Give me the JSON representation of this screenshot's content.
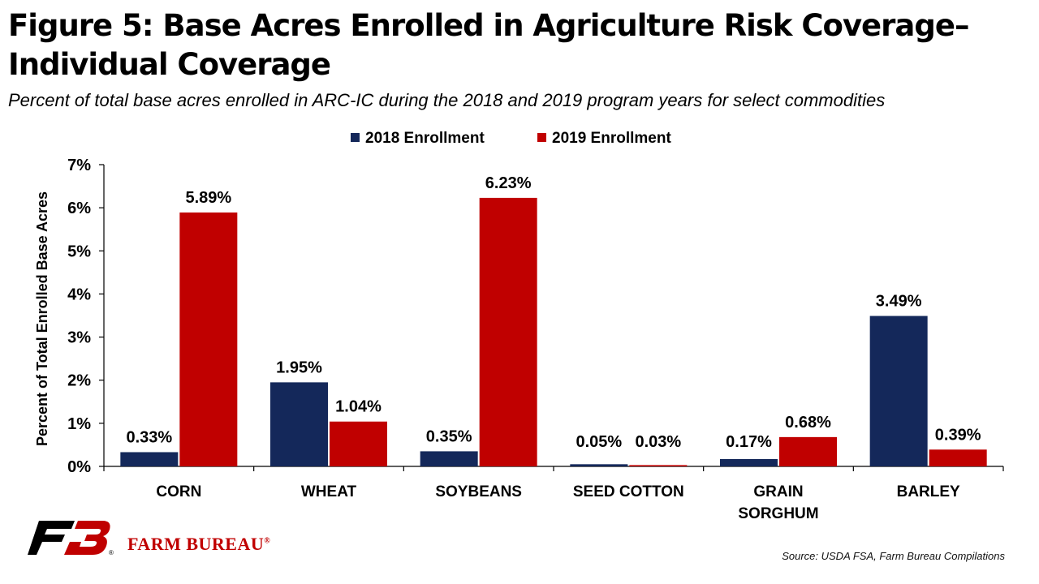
{
  "title": "Figure 5: Base Acres Enrolled in Agriculture Risk Coverage–Individual Coverage",
  "subtitle": "Percent of total base acres enrolled in ARC-IC during the 2018 and 2019 program years for select commodities",
  "source": "Source: USDA FSA, Farm Bureau Compilations",
  "brand": {
    "name": "FARM BUREAU",
    "registered": "®",
    "logo_icon": "fb-monogram-logo",
    "logo_registered": "®"
  },
  "colors": {
    "series_2018": "#14285a",
    "series_2019": "#c00000",
    "brand_red": "#c00000"
  },
  "chart_data": {
    "type": "bar",
    "title": "",
    "xlabel": "",
    "ylabel": "Percent of Total Enrolled Base Acres",
    "ylim": [
      0,
      7
    ],
    "yticks": [
      "0%",
      "1%",
      "2%",
      "3%",
      "4%",
      "5%",
      "6%",
      "7%"
    ],
    "grid": false,
    "legend_position": "top-center",
    "categories": [
      [
        "CORN"
      ],
      [
        "WHEAT"
      ],
      [
        "SOYBEANS"
      ],
      [
        "SEED COTTON"
      ],
      [
        "GRAIN",
        "SORGHUM"
      ],
      [
        "BARLEY"
      ]
    ],
    "series": [
      {
        "name": "2018 Enrollment",
        "color": "#14285a",
        "values": [
          0.33,
          1.95,
          0.35,
          0.05,
          0.17,
          3.49
        ],
        "labels": [
          "0.33%",
          "1.95%",
          "0.35%",
          "0.05%",
          "0.17%",
          "3.49%"
        ]
      },
      {
        "name": "2019 Enrollment",
        "color": "#c00000",
        "values": [
          5.89,
          1.04,
          6.23,
          0.03,
          0.68,
          0.39
        ],
        "labels": [
          "5.89%",
          "1.04%",
          "6.23%",
          "0.03%",
          "0.68%",
          "0.39%"
        ]
      }
    ]
  }
}
